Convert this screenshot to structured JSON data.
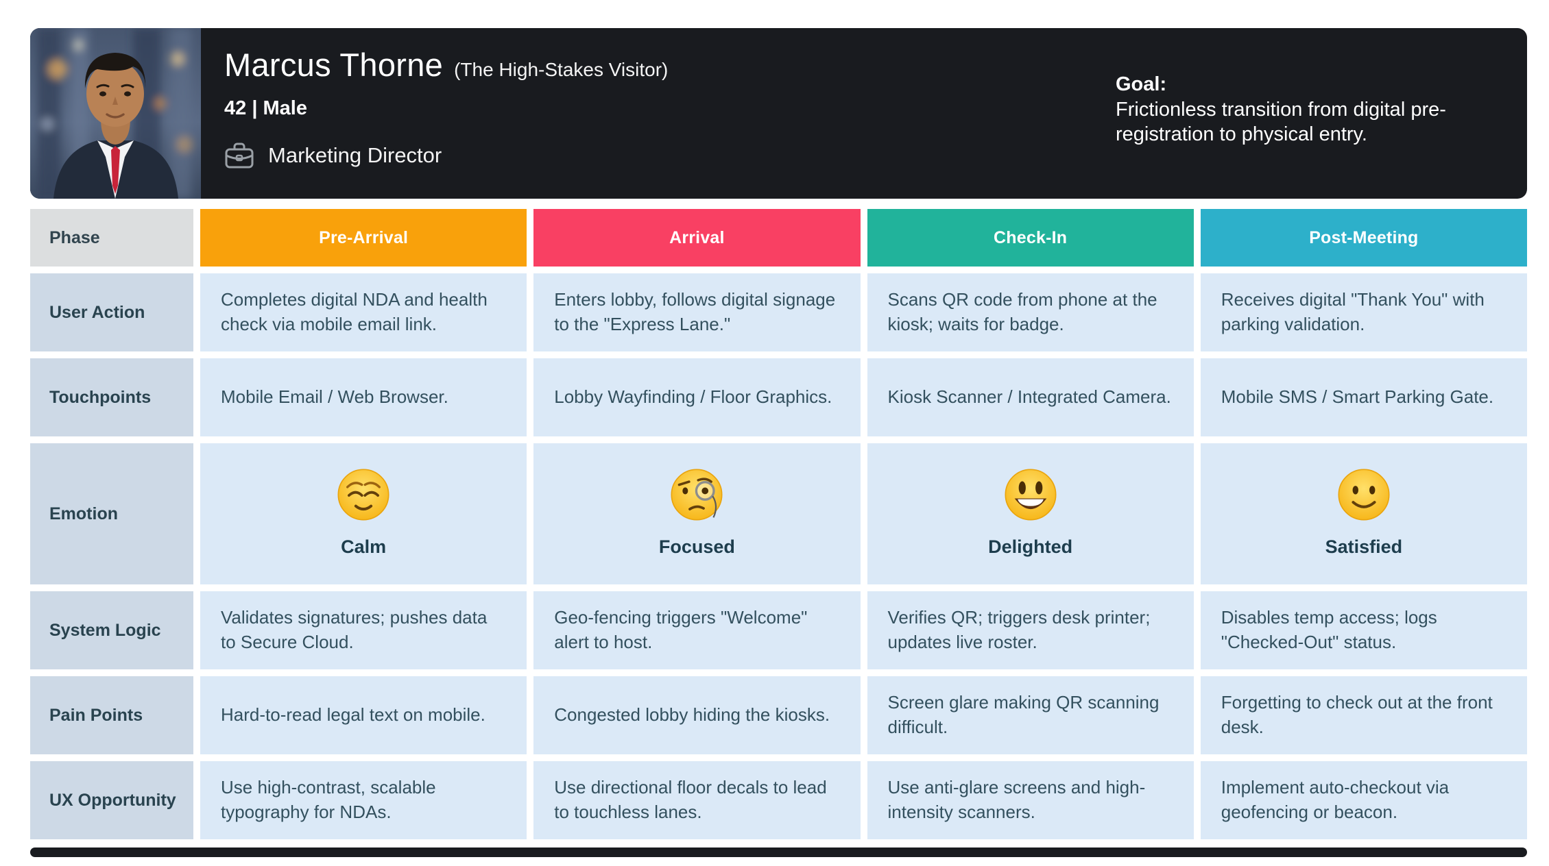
{
  "persona": {
    "name": "Marcus Thorne",
    "alias": "(The High-Stakes Visitor)",
    "demographics": "42 | Male",
    "role": "Marketing Director",
    "role_icon": "briefcase-icon",
    "photo": "portrait-photo-man-in-suit",
    "goal_label": "Goal:",
    "goal_text": "Frictionless transition from digital pre-registration to physical entry.",
    "header_bg_color": "#191b1f"
  },
  "journey": {
    "corner_label": "Phase",
    "phases": [
      {
        "label": "Pre-Arrival",
        "color": "#f9a10b"
      },
      {
        "label": "Arrival",
        "color": "#f94063"
      },
      {
        "label": "Check-In",
        "color": "#21b39b"
      },
      {
        "label": "Post-Meeting",
        "color": "#2db0ca"
      }
    ],
    "rows": [
      {
        "label": "User Action",
        "type": "text",
        "cells": [
          "Completes digital NDA and health check via mobile email link.",
          "Enters lobby, follows digital signage to the \"Express Lane.\"",
          "Scans QR code from phone at the kiosk; waits for badge.",
          "Receives digital \"Thank You\" with parking validation."
        ]
      },
      {
        "label": "Touchpoints",
        "type": "text",
        "cells": [
          "Mobile Email / Web Browser.",
          "Lobby Wayfinding / Floor Graphics.",
          "Kiosk Scanner / Integrated Camera.",
          "Mobile SMS / Smart Parking Gate."
        ]
      },
      {
        "label": "Emotion",
        "type": "emotion",
        "cells": [
          {
            "icon": "relieved-face-emoji",
            "caption": "Calm"
          },
          {
            "icon": "monocle-face-emoji",
            "caption": "Focused"
          },
          {
            "icon": "grinning-face-emoji",
            "caption": "Delighted"
          },
          {
            "icon": "slightly-smiling-face-emoji",
            "caption": "Satisfied"
          }
        ]
      },
      {
        "label": "System Logic",
        "type": "text",
        "cells": [
          "Validates signatures; pushes data to Secure Cloud.",
          "Geo-fencing triggers \"Welcome\" alert to host.",
          "Verifies QR; triggers desk printer; updates live roster.",
          "Disables temp access; logs \"Checked-Out\" status."
        ]
      },
      {
        "label": "Pain Points",
        "type": "text",
        "cells": [
          "Hard-to-read legal text on mobile.",
          "Congested lobby hiding the kiosks.",
          "Screen glare making QR scanning difficult.",
          "Forgetting to check out at the front desk."
        ]
      },
      {
        "label": "UX Opportunity",
        "type": "text",
        "cells": [
          "Use high-contrast, scalable typography for NDAs.",
          "Use directional floor decals to lead to touchless lanes.",
          "Use anti-glare screens and high-intensity scanners.",
          "Implement auto-checkout via geofencing or beacon."
        ]
      }
    ],
    "colors": {
      "corner_cell": "#dcdedf",
      "row_label_cell": "#cdd9e6",
      "data_cell": "#dbe9f7",
      "cell_text": "#33505e"
    }
  }
}
